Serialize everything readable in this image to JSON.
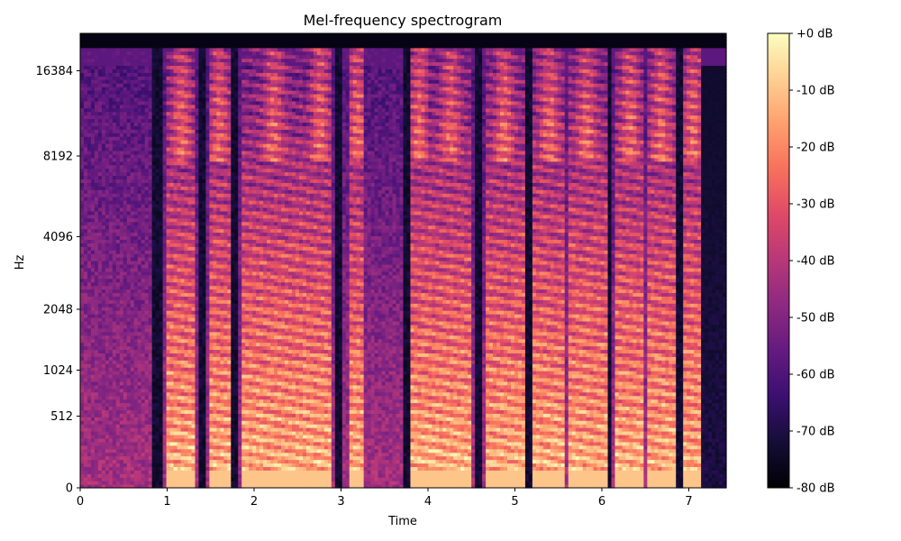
{
  "chart_data": {
    "type": "heatmap",
    "title": "Mel-frequency spectrogram",
    "xlabel": "Time",
    "ylabel": "Hz",
    "x_ticks": [
      "0",
      "1",
      "2",
      "3",
      "4",
      "5",
      "6",
      "7"
    ],
    "x_tick_values": [
      0,
      1,
      2,
      3,
      4,
      5,
      6,
      7
    ],
    "xlim": [
      0,
      7.43
    ],
    "y_ticks": [
      "0",
      "512",
      "1024",
      "2048",
      "4096",
      "8192",
      "16384"
    ],
    "y_tick_values": [
      0,
      512,
      1024,
      2048,
      4096,
      8192,
      16384
    ],
    "y_scale": "mel",
    "colorscale": "magma",
    "colorbar": {
      "tick_labels": [
        "+0 dB",
        "-10 dB",
        "-20 dB",
        "-30 dB",
        "-40 dB",
        "-50 dB",
        "-60 dB",
        "-70 dB",
        "-80 dB"
      ],
      "range": [
        -80,
        0
      ]
    },
    "silent_intervals_s": [
      [
        0.83,
        0.96
      ],
      [
        1.37,
        1.45
      ],
      [
        1.74,
        1.81
      ],
      [
        2.93,
        3.03
      ],
      [
        3.71,
        3.78
      ],
      [
        4.52,
        4.62
      ],
      [
        5.12,
        5.2
      ],
      [
        6.07,
        6.12
      ],
      [
        6.86,
        6.93
      ]
    ],
    "voiced_bursts_s": [
      [
        1.0,
        1.33
      ],
      [
        1.48,
        1.72
      ],
      [
        1.85,
        2.6
      ],
      [
        2.62,
        2.9
      ],
      [
        3.1,
        3.28
      ],
      [
        3.8,
        4.0
      ],
      [
        4.02,
        4.5
      ],
      [
        4.65,
        5.1
      ],
      [
        5.22,
        5.58
      ],
      [
        5.6,
        6.05
      ],
      [
        6.15,
        6.5
      ],
      [
        6.52,
        6.84
      ],
      [
        6.95,
        7.15
      ]
    ]
  }
}
